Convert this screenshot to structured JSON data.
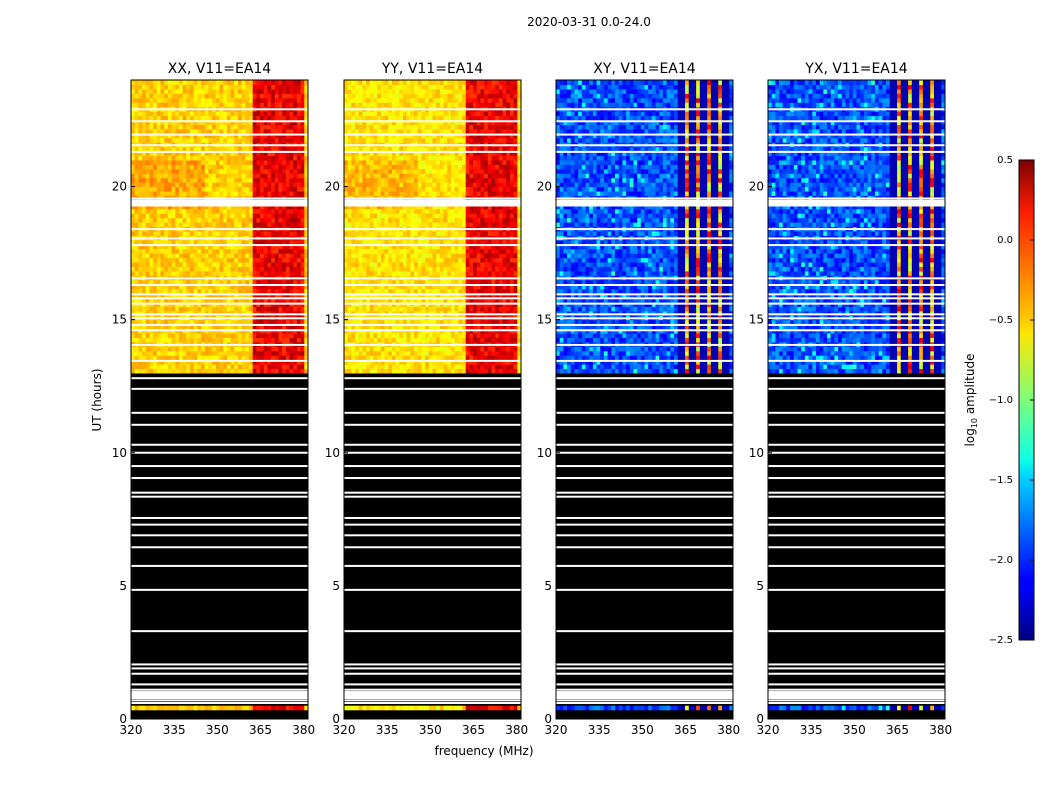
{
  "chart_data": {
    "type": "heatmap",
    "suptitle": "2020-03-31 0.0-24.0",
    "xlabel": "frequency (MHz)",
    "ylabel": "UT (hours)",
    "xlim": [
      320,
      381.5
    ],
    "ylim": [
      0,
      24
    ],
    "xticks": [
      320,
      335,
      350,
      365,
      380
    ],
    "yticks": [
      0,
      5,
      10,
      15,
      20
    ],
    "panels": [
      {
        "title": "XX, V11=EA14",
        "kind": "parallel"
      },
      {
        "title": "YY, V11=EA14",
        "kind": "parallel"
      },
      {
        "title": "XY, V11=EA14",
        "kind": "cross"
      },
      {
        "title": "YX, V11=EA14",
        "kind": "cross"
      }
    ],
    "colorbar": {
      "label": "log10 amplitude",
      "label_base": "log",
      "label_sub": "10",
      "label_rest": " amplitude",
      "range": [
        -2.5,
        0.5
      ],
      "ticks": [
        "0.5",
        "0.0",
        "−0.5",
        "−1.0",
        "−1.5",
        "−2.0",
        "−2.5"
      ],
      "tick_values": [
        0.5,
        0.0,
        -0.5,
        -1.0,
        -1.5,
        -2.0,
        -2.5
      ],
      "colormap": "jet"
    },
    "flagged_no_data_hours": [
      0.75,
      13.0
    ],
    "rfi_band_mhz": [
      362,
      380
    ],
    "blank_rows_hours": [
      0.6,
      0.7,
      1.1,
      1.3,
      1.7,
      1.9,
      2.05,
      3.3,
      4.85,
      5.75,
      6.45,
      6.9,
      7.3,
      7.55,
      8.35,
      8.5,
      9.05,
      9.5,
      10.0,
      10.3,
      11.05,
      11.5,
      12.4,
      12.8,
      13.45,
      14.05,
      14.6,
      14.8,
      15.05,
      15.2,
      15.6,
      15.8,
      15.95,
      16.3,
      16.55,
      17.8,
      18.05,
      18.4,
      19.3,
      19.45,
      19.55,
      21.3,
      21.55,
      21.95,
      22.45,
      22.9
    ],
    "colors": {
      "background": "#ffffff",
      "flagged": "#000000"
    }
  }
}
